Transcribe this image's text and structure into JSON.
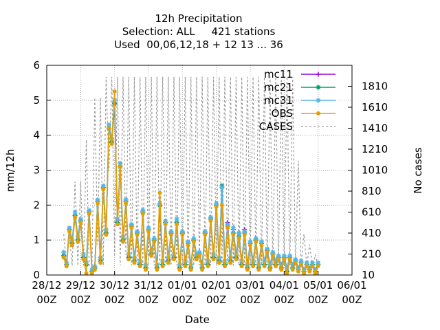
{
  "chart_data": {
    "type": "line",
    "title_lines": [
      "12h Precipitation",
      "Selection: ALL     421 stations",
      "Used  00,06,12,18 + 12 13 ... 36"
    ],
    "xlabel": "Date",
    "ylabel": "mm/12h",
    "y2label": "No cases",
    "ylim": [
      0,
      6
    ],
    "y2lim": [
      10,
      2010
    ],
    "xlim": [
      0,
      8
    ],
    "grid": true,
    "legend_position": "top-right",
    "x_ticks": [
      {
        "line1": "28/12",
        "line2": "00Z",
        "x": 0
      },
      {
        "line1": "29/12",
        "line2": "00Z",
        "x": 1
      },
      {
        "line1": "30/12",
        "line2": "00Z",
        "x": 2
      },
      {
        "line1": "31/12",
        "line2": "00Z",
        "x": 3
      },
      {
        "line1": "01/01",
        "line2": "00Z",
        "x": 4
      },
      {
        "line1": "02/01",
        "line2": "00Z",
        "x": 5
      },
      {
        "line1": "03/01",
        "line2": "00Z",
        "x": 6
      },
      {
        "line1": "04/01",
        "line2": "00Z",
        "x": 7
      },
      {
        "line1": "05/01",
        "line2": "00Z",
        "x": 8
      },
      {
        "line1": "06/01",
        "line2": "00Z",
        "x": 9
      }
    ],
    "y_ticks": [
      "0",
      "1",
      "2",
      "3",
      "4",
      "5",
      "6"
    ],
    "y2_ticks": [
      "10",
      "210",
      "410",
      "610",
      "810",
      "1010",
      "1210",
      "1410",
      "1610",
      "1810"
    ],
    "x": [
      0.5,
      0.5833,
      0.6667,
      0.75,
      0.8333,
      0.9167,
      1,
      1.0833,
      1.1667,
      1.25,
      1.3333,
      1.4167,
      1.5,
      1.5833,
      1.6667,
      1.75,
      1.8333,
      1.9167,
      2,
      2.0833,
      2.1667,
      2.25,
      2.3333,
      2.4167,
      2.5,
      2.5833,
      2.6667,
      2.75,
      2.8333,
      2.9167,
      3,
      3.0833,
      3.1667,
      3.25,
      3.3333,
      3.4167,
      3.5,
      3.5833,
      3.6667,
      3.75,
      3.8333,
      3.9167,
      4,
      4.0833,
      4.1667,
      4.25,
      4.3333,
      4.4167,
      4.5,
      4.5833,
      4.6667,
      4.75,
      4.8333,
      4.9167,
      5,
      5.0833,
      5.1667,
      5.25,
      5.3333,
      5.4167,
      5.5,
      5.5833,
      5.6667,
      5.75,
      5.8333,
      5.9167,
      6,
      6.0833,
      6.1667,
      6.25,
      6.3333,
      6.4167,
      6.5,
      6.5833,
      6.6667,
      6.75,
      6.8333,
      6.9167,
      7,
      7.0833,
      7.1667,
      7.25,
      7.3333,
      7.4167,
      7.5,
      7.5833,
      7.6667,
      7.75,
      7.8333,
      7.9167,
      8
    ],
    "series": [
      {
        "name": "mc11",
        "color": "#9400d3",
        "marker": "plus",
        "values": [
          0.55,
          0.3,
          1.3,
          0.9,
          1.7,
          1.0,
          1.55,
          0.5,
          0.3,
          1.8,
          0.1,
          0.2,
          2.1,
          0.4,
          2.5,
          1.2,
          4.2,
          3.8,
          4.9,
          1.5,
          3.1,
          1.0,
          2.1,
          0.5,
          1.4,
          0.4,
          1.2,
          0.3,
          1.8,
          0.2,
          1.3,
          0.6,
          1.0,
          0.2,
          2.0,
          0.3,
          1.5,
          0.4,
          1.2,
          0.5,
          1.5,
          0.2,
          1.2,
          0.3,
          0.9,
          0.2,
          1.0,
          0.5,
          0.6,
          0.2,
          1.2,
          0.3,
          1.6,
          0.5,
          2.0,
          0.4,
          2.5,
          0.3,
          1.5,
          0.4,
          1.3,
          0.5,
          1.2,
          0.3,
          1.3,
          0.2,
          0.9,
          0.3,
          1.0,
          0.2,
          0.9,
          0.3,
          0.7,
          0.2,
          0.6,
          0.3,
          0.5,
          0.2,
          0.5,
          0.1,
          0.5,
          0.2,
          0.4,
          0.15,
          0.35,
          0.1,
          0.3,
          0.15,
          0.3,
          0.1,
          0.3
        ]
      },
      {
        "name": "mc21",
        "color": "#009e73",
        "marker": "star",
        "values": [
          0.55,
          0.3,
          1.3,
          0.9,
          1.7,
          1.0,
          1.55,
          0.5,
          0.3,
          1.8,
          0.1,
          0.2,
          2.1,
          0.4,
          2.5,
          1.2,
          4.2,
          3.8,
          4.9,
          1.5,
          3.1,
          1.0,
          2.1,
          0.5,
          1.4,
          0.4,
          1.2,
          0.3,
          1.8,
          0.2,
          1.3,
          0.6,
          1.0,
          0.2,
          2.0,
          0.3,
          1.5,
          0.4,
          1.2,
          0.5,
          1.5,
          0.2,
          1.2,
          0.3,
          0.9,
          0.2,
          1.0,
          0.5,
          0.6,
          0.2,
          1.2,
          0.3,
          1.6,
          0.5,
          2.0,
          0.4,
          2.55,
          0.3,
          1.4,
          0.4,
          1.2,
          0.5,
          1.1,
          0.3,
          1.2,
          0.2,
          0.9,
          0.3,
          1.0,
          0.2,
          0.9,
          0.3,
          0.7,
          0.2,
          0.6,
          0.3,
          0.5,
          0.2,
          0.5,
          0.1,
          0.5,
          0.2,
          0.4,
          0.15,
          0.35,
          0.1,
          0.3,
          0.15,
          0.3,
          0.1,
          0.3
        ]
      },
      {
        "name": "mc31",
        "color": "#56b4e9",
        "marker": "star",
        "values": [
          0.65,
          0.35,
          1.35,
          1.0,
          1.8,
          1.1,
          1.6,
          0.6,
          0.35,
          1.85,
          0.15,
          0.25,
          2.15,
          0.5,
          2.55,
          1.3,
          4.3,
          3.9,
          5.0,
          1.6,
          3.2,
          1.1,
          2.15,
          0.6,
          1.45,
          0.5,
          1.25,
          0.4,
          1.85,
          0.3,
          1.35,
          0.7,
          1.05,
          0.3,
          2.05,
          0.4,
          1.55,
          0.5,
          1.25,
          0.6,
          1.6,
          0.3,
          1.25,
          0.4,
          0.95,
          0.3,
          1.05,
          0.6,
          0.65,
          0.3,
          1.25,
          0.4,
          1.65,
          0.6,
          2.05,
          0.5,
          2.5,
          0.4,
          1.45,
          0.5,
          1.35,
          0.6,
          1.2,
          0.4,
          1.25,
          0.3,
          0.95,
          0.4,
          1.05,
          0.3,
          0.95,
          0.4,
          0.75,
          0.3,
          0.65,
          0.4,
          0.55,
          0.3,
          0.55,
          0.2,
          0.55,
          0.3,
          0.45,
          0.2,
          0.4,
          0.15,
          0.35,
          0.2,
          0.35,
          0.15,
          0.35
        ]
      },
      {
        "name": "OBS",
        "color": "#e69f00",
        "marker": "circle",
        "values": [
          0.5,
          0.25,
          1.25,
          0.85,
          1.65,
          0.95,
          1.5,
          0.45,
          0.05,
          1.75,
          0.05,
          0.15,
          2.05,
          0.35,
          2.45,
          1.15,
          4.2,
          3.75,
          5.25,
          1.45,
          3.1,
          0.95,
          2.05,
          0.45,
          1.35,
          0.35,
          1.15,
          0.25,
          1.75,
          0.15,
          1.25,
          0.55,
          0.95,
          0.15,
          2.35,
          0.25,
          1.45,
          0.35,
          1.15,
          0.45,
          1.45,
          0.15,
          1.15,
          0.25,
          0.85,
          0.15,
          0.95,
          0.45,
          0.55,
          0.15,
          1.15,
          0.25,
          1.55,
          0.45,
          1.95,
          0.35,
          2.0,
          0.25,
          1.35,
          0.35,
          1.15,
          0.45,
          1.05,
          0.25,
          1.15,
          0.15,
          0.85,
          0.25,
          0.95,
          0.15,
          0.85,
          0.25,
          0.65,
          0.15,
          0.55,
          0.25,
          0.45,
          0.15,
          0.45,
          0.05,
          0.45,
          0.15,
          0.35,
          0.1,
          0.3,
          0.05,
          0.25,
          0.1,
          0.25,
          0.05,
          0.25
        ]
      },
      {
        "name": "CASES",
        "color": "#999999",
        "marker": "none",
        "axis": "y2",
        "values": [
          400,
          100,
          400,
          100,
          900,
          100,
          900,
          100,
          1300,
          100,
          100,
          1700,
          300,
          1700,
          100,
          1900,
          1000,
          1900,
          200,
          1900,
          100,
          1900,
          200,
          1900,
          100,
          1900,
          100,
          1900,
          100,
          1900,
          100,
          1900,
          100,
          1900,
          100,
          1900,
          100,
          1900,
          100,
          1900,
          100,
          1900,
          100,
          1900,
          100,
          1900,
          100,
          1900,
          100,
          1900,
          100,
          1900,
          100,
          1900,
          100,
          1900,
          100,
          1900,
          100,
          1900,
          100,
          1900,
          100,
          1900,
          100,
          1900,
          100,
          1900,
          100,
          1900,
          100,
          1900,
          100,
          1900,
          100,
          1900,
          100,
          1900,
          100,
          1900,
          100,
          1900,
          100,
          1100,
          100,
          400,
          100,
          300,
          100,
          200,
          100
        ]
      }
    ]
  }
}
